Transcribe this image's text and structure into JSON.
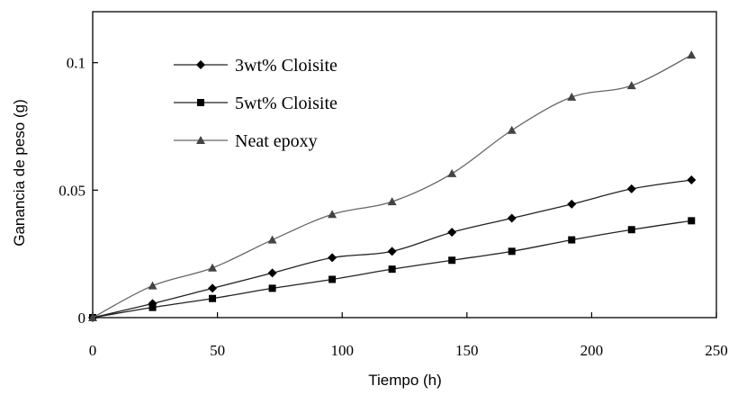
{
  "chart_data": {
    "type": "line",
    "xlabel": "Tiempo (h)",
    "ylabel": "Ganancia de peso (g)",
    "xlim": [
      0,
      250
    ],
    "ylim": [
      0,
      0.12
    ],
    "x_ticks": [
      "0",
      "50",
      "100",
      "150",
      "200",
      "250"
    ],
    "y_ticks": [
      "0",
      "0.05",
      "0.1"
    ],
    "x_tick_values": [
      0,
      50,
      100,
      150,
      200,
      250
    ],
    "y_tick_values": [
      0,
      0.05,
      0.1
    ],
    "grid": false,
    "legend_position": "top-left",
    "series": [
      {
        "name": "3wt% Cloisite",
        "marker": "diamond",
        "color": "#000000",
        "x": [
          0,
          24,
          48,
          72,
          96,
          120,
          144,
          168,
          192,
          216,
          240
        ],
        "y": [
          0,
          0.0055,
          0.0115,
          0.0175,
          0.0235,
          0.026,
          0.0335,
          0.039,
          0.0445,
          0.0505,
          0.054
        ]
      },
      {
        "name": "5wt% Cloisite",
        "marker": "square",
        "color": "#000000",
        "x": [
          0,
          24,
          48,
          72,
          96,
          120,
          144,
          168,
          192,
          216,
          240
        ],
        "y": [
          0,
          0.004,
          0.0075,
          0.0115,
          0.015,
          0.019,
          0.0225,
          0.026,
          0.0305,
          0.0345,
          0.038
        ]
      },
      {
        "name": "Neat epoxy",
        "marker": "triangle",
        "color": "#000000",
        "x": [
          0,
          24,
          48,
          72,
          96,
          120,
          144,
          168,
          192,
          216,
          240
        ],
        "y": [
          0,
          0.0125,
          0.0195,
          0.0305,
          0.0405,
          0.0455,
          0.0565,
          0.0735,
          0.0865,
          0.091,
          0.103
        ]
      }
    ]
  }
}
